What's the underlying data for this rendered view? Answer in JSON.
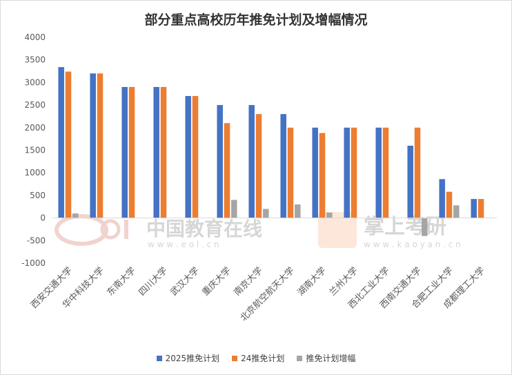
{
  "chart_data": {
    "type": "bar",
    "title": "部分重点高校历年推免计划及增幅情况",
    "xlabel": "",
    "ylabel": "",
    "ylim": [
      -1000,
      4000
    ],
    "yticks": [
      4000,
      3500,
      3000,
      2500,
      2000,
      1500,
      1000,
      500,
      0,
      -500,
      -1000
    ],
    "grid": false,
    "legend_position": "bottom",
    "categories": [
      "西安交通大学",
      "华中科技大学",
      "东南大学",
      "四川大学",
      "武汉大学",
      "重庆大学",
      "南京大学",
      "北京航空航天大学",
      "湖南大学",
      "兰州大学",
      "西北工业大学",
      "西南交通大学",
      "合肥工业大学",
      "成都理工大学"
    ],
    "series": [
      {
        "name": "2025推免计划",
        "color": "#4472c4",
        "values": [
          3340,
          3200,
          2900,
          2900,
          2700,
          2500,
          2500,
          2300,
          2000,
          2000,
          2000,
          1600,
          860,
          420
        ]
      },
      {
        "name": "24推免计划",
        "color": "#ed7d31",
        "values": [
          3240,
          3200,
          2900,
          2900,
          2700,
          2100,
          2300,
          2000,
          1880,
          2000,
          2000,
          2000,
          580,
          420
        ]
      },
      {
        "name": "推免计划增幅",
        "color": "#a5a5a5",
        "values": [
          100,
          0,
          0,
          0,
          0,
          400,
          200,
          300,
          120,
          0,
          0,
          -400,
          280,
          0
        ]
      }
    ]
  },
  "watermarks": {
    "eol_cn": "中国教育在线",
    "eol_url": "w w w . e o l . c n",
    "kaoyan_cn": "掌上考研",
    "kaoyan_url": "w w w . k a o y a n . c n"
  }
}
